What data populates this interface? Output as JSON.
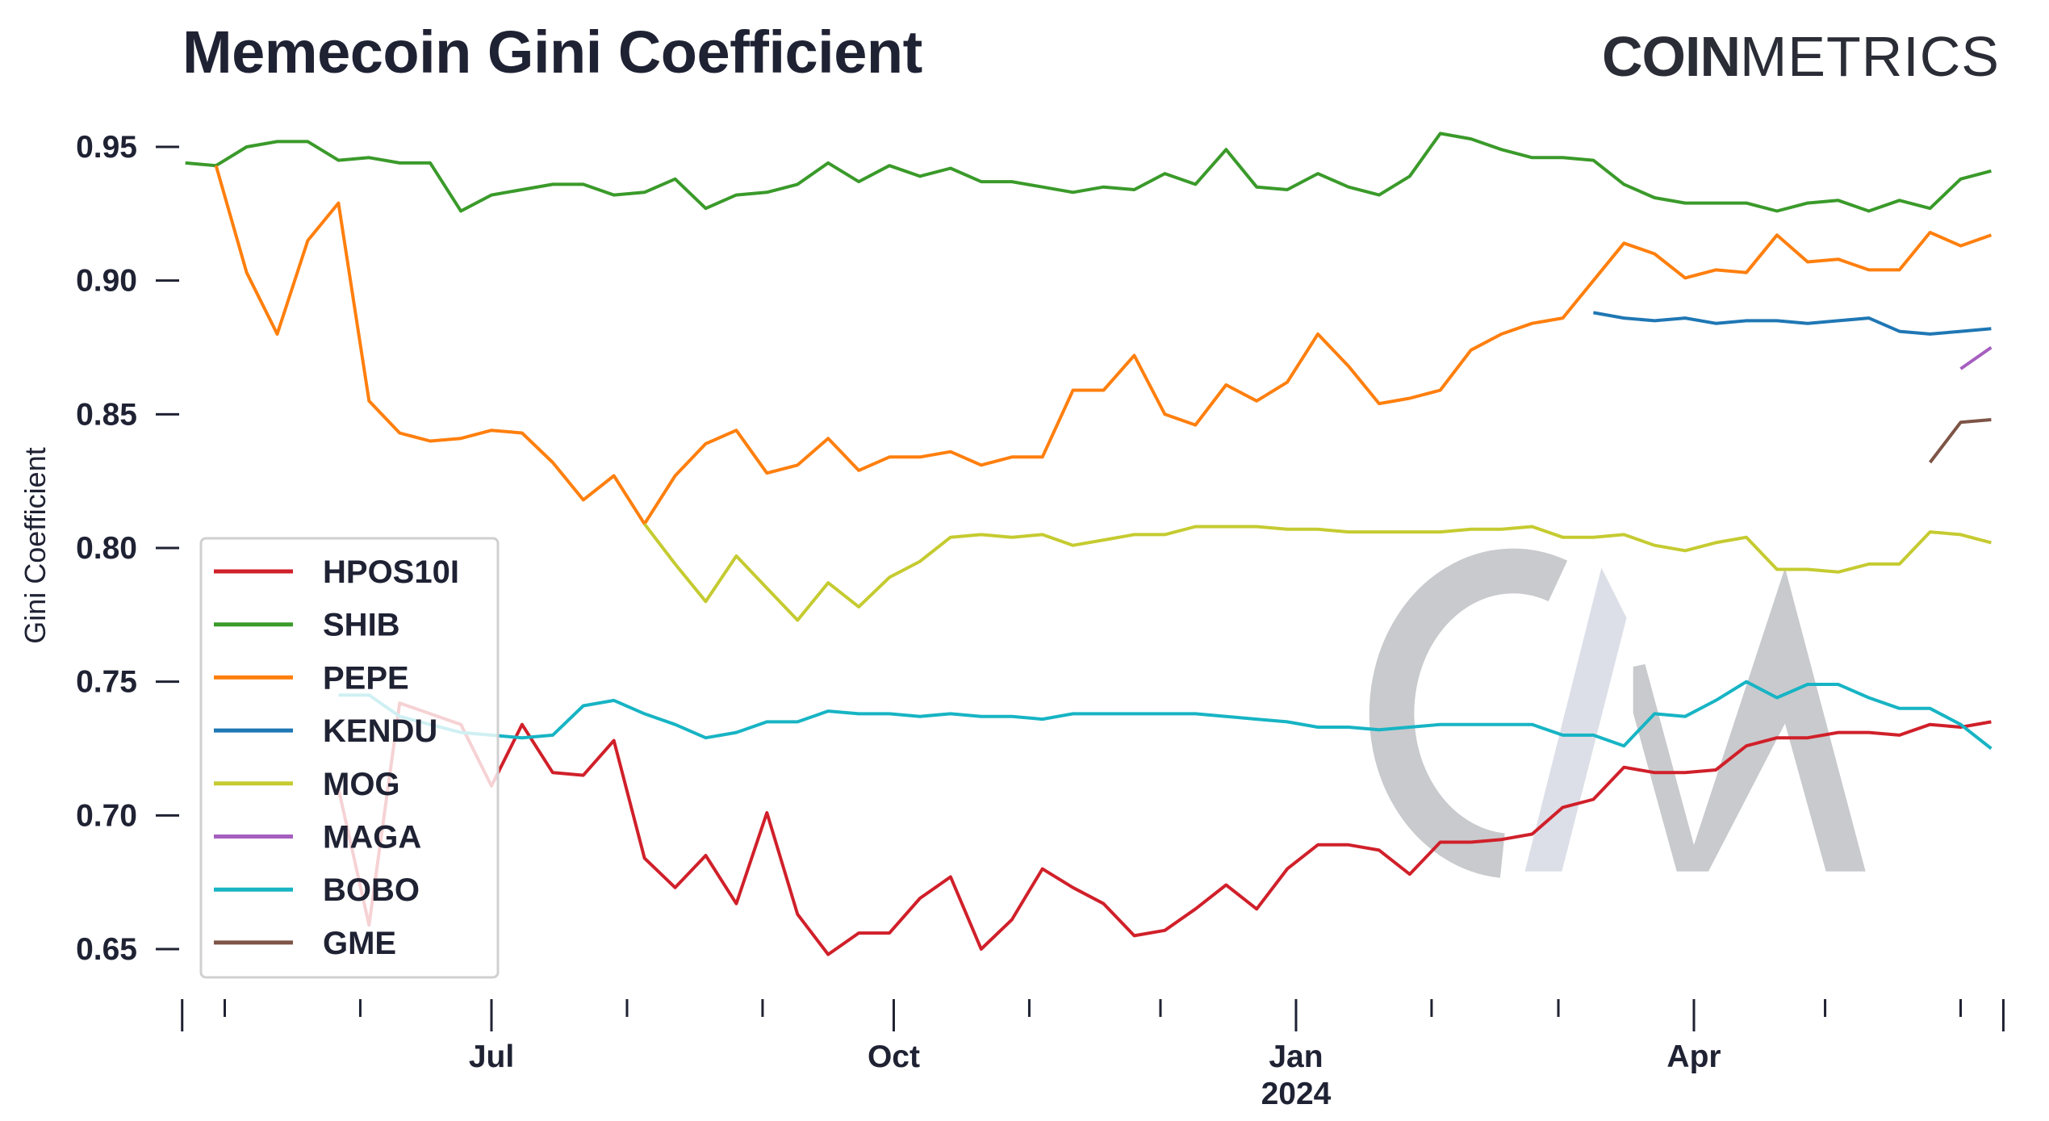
{
  "header": {
    "title": "Memecoin Gini Coefficient",
    "logo_bold": "COIN",
    "logo_light": "METRICS"
  },
  "chart_data": {
    "type": "line",
    "title": "Memecoin Gini Coefficient",
    "xlabel": "",
    "ylabel": "Gini Coefficient",
    "ylim": [
      0.635,
      0.955
    ],
    "yticks": [
      "0.95",
      "0.90",
      "0.85",
      "0.80",
      "0.75",
      "0.70",
      "0.65"
    ],
    "xticks": [
      {
        "date": "2023-07-01",
        "label": "Jul",
        "sublabel": ""
      },
      {
        "date": "2023-10-01",
        "label": "Oct",
        "sublabel": ""
      },
      {
        "date": "2024-01-01",
        "label": "Jan",
        "sublabel": "2024"
      },
      {
        "date": "2024-04-01",
        "label": "Apr",
        "sublabel": ""
      }
    ],
    "grid": false,
    "legend_position": "lower-left",
    "x": [
      "2023-04-22",
      "2023-04-29",
      "2023-05-06",
      "2023-05-13",
      "2023-05-20",
      "2023-05-27",
      "2023-06-03",
      "2023-06-10",
      "2023-06-17",
      "2023-06-24",
      "2023-07-01",
      "2023-07-08",
      "2023-07-15",
      "2023-07-22",
      "2023-07-29",
      "2023-08-05",
      "2023-08-12",
      "2023-08-19",
      "2023-08-26",
      "2023-09-02",
      "2023-09-09",
      "2023-09-16",
      "2023-09-23",
      "2023-09-30",
      "2023-10-07",
      "2023-10-14",
      "2023-10-21",
      "2023-10-28",
      "2023-11-04",
      "2023-11-11",
      "2023-11-18",
      "2023-11-25",
      "2023-12-02",
      "2023-12-09",
      "2023-12-16",
      "2023-12-23",
      "2023-12-30",
      "2024-01-06",
      "2024-01-13",
      "2024-01-20",
      "2024-01-27",
      "2024-02-03",
      "2024-02-10",
      "2024-02-17",
      "2024-02-24",
      "2024-03-02",
      "2024-03-09",
      "2024-03-16",
      "2024-03-23",
      "2024-03-30",
      "2024-04-06",
      "2024-04-13",
      "2024-04-20",
      "2024-04-27",
      "2024-05-04",
      "2024-05-11",
      "2024-05-18",
      "2024-05-25",
      "2024-06-01",
      "2024-06-08"
    ],
    "series": [
      {
        "name": "HPOS10I",
        "color": "#d0202a",
        "values": [
          null,
          null,
          null,
          null,
          null,
          0.71,
          0.659,
          0.742,
          0.738,
          0.734,
          0.711,
          0.734,
          0.716,
          0.715,
          0.728,
          0.684,
          0.673,
          0.685,
          0.667,
          0.701,
          0.663,
          0.648,
          0.656,
          0.656,
          0.669,
          0.677,
          0.65,
          0.661,
          0.68,
          0.673,
          0.667,
          0.655,
          0.657,
          0.665,
          0.674,
          0.665,
          0.68,
          0.689,
          0.689,
          0.687,
          0.678,
          0.69,
          0.69,
          0.691,
          0.693,
          0.703,
          0.706,
          0.718,
          0.716,
          0.716,
          0.717,
          0.726,
          0.729,
          0.729,
          0.731,
          0.731,
          0.73,
          0.734,
          0.733,
          0.735
        ]
      },
      {
        "name": "SHIB",
        "color": "#3a9a2a",
        "values": [
          0.944,
          0.943,
          0.95,
          0.952,
          0.952,
          0.945,
          0.946,
          0.944,
          0.944,
          0.926,
          0.932,
          0.934,
          0.936,
          0.936,
          0.932,
          0.933,
          0.938,
          0.927,
          0.932,
          0.933,
          0.936,
          0.944,
          0.937,
          0.943,
          0.939,
          0.942,
          0.937,
          0.937,
          0.935,
          0.933,
          0.935,
          0.934,
          0.94,
          0.936,
          0.949,
          0.935,
          0.934,
          0.94,
          0.935,
          0.932,
          0.939,
          0.955,
          0.953,
          0.949,
          0.946,
          0.946,
          0.945,
          0.936,
          0.931,
          0.929,
          0.929,
          0.929,
          0.926,
          0.929,
          0.93,
          0.926,
          0.93,
          0.927,
          0.938,
          0.941
        ]
      },
      {
        "name": "PEPE",
        "color": "#ff7f0e",
        "values": [
          null,
          0.943,
          0.903,
          0.88,
          0.915,
          0.929,
          0.855,
          0.843,
          0.84,
          0.841,
          0.844,
          0.843,
          0.832,
          0.818,
          0.827,
          0.809,
          0.827,
          0.839,
          0.844,
          0.828,
          0.831,
          0.841,
          0.829,
          0.834,
          0.834,
          0.836,
          0.831,
          0.834,
          0.834,
          0.859,
          0.859,
          0.872,
          0.85,
          0.846,
          0.861,
          0.855,
          0.862,
          0.88,
          0.868,
          0.854,
          0.856,
          0.859,
          0.874,
          0.88,
          0.884,
          0.886,
          0.9,
          0.914,
          0.91,
          0.901,
          0.904,
          0.903,
          0.917,
          0.907,
          0.908,
          0.904,
          0.904,
          0.918,
          0.913,
          0.917
        ]
      },
      {
        "name": "KENDU",
        "color": "#1f77b4",
        "values": [
          null,
          null,
          null,
          null,
          null,
          null,
          null,
          null,
          null,
          null,
          null,
          null,
          null,
          null,
          null,
          null,
          null,
          null,
          null,
          null,
          null,
          null,
          null,
          null,
          null,
          null,
          null,
          null,
          null,
          null,
          null,
          null,
          null,
          null,
          null,
          null,
          null,
          null,
          null,
          null,
          null,
          null,
          null,
          null,
          null,
          null,
          0.888,
          0.886,
          0.885,
          0.886,
          0.884,
          0.885,
          0.885,
          0.884,
          0.885,
          0.886,
          0.881,
          0.88,
          0.881,
          0.882
        ]
      },
      {
        "name": "MOG",
        "color": "#c5cb30",
        "values": [
          null,
          null,
          null,
          null,
          null,
          null,
          null,
          null,
          null,
          null,
          null,
          null,
          null,
          null,
          null,
          0.809,
          0.794,
          0.78,
          0.797,
          0.785,
          0.773,
          0.787,
          0.778,
          0.789,
          0.795,
          0.804,
          0.805,
          0.804,
          0.805,
          0.801,
          0.803,
          0.805,
          0.805,
          0.808,
          0.808,
          0.808,
          0.807,
          0.807,
          0.806,
          0.806,
          0.806,
          0.806,
          0.807,
          0.807,
          0.808,
          0.804,
          0.804,
          0.805,
          0.801,
          0.799,
          0.802,
          0.804,
          0.792,
          0.792,
          0.791,
          0.794,
          0.794,
          0.806,
          0.805,
          0.802
        ]
      },
      {
        "name": "MAGA",
        "color": "#a65fbf",
        "values": [
          null,
          null,
          null,
          null,
          null,
          null,
          null,
          null,
          null,
          null,
          null,
          null,
          null,
          null,
          null,
          null,
          null,
          null,
          null,
          null,
          null,
          null,
          null,
          null,
          null,
          null,
          null,
          null,
          null,
          null,
          null,
          null,
          null,
          null,
          null,
          null,
          null,
          null,
          null,
          null,
          null,
          null,
          null,
          null,
          null,
          null,
          null,
          null,
          null,
          null,
          null,
          null,
          null,
          null,
          null,
          null,
          null,
          null,
          0.867,
          0.875
        ]
      },
      {
        "name": "BOBO",
        "color": "#17b4c4",
        "values": [
          null,
          null,
          null,
          null,
          null,
          0.745,
          0.745,
          0.737,
          0.734,
          0.731,
          0.73,
          0.729,
          0.73,
          0.741,
          0.743,
          0.738,
          0.734,
          0.729,
          0.731,
          0.735,
          0.735,
          0.739,
          0.738,
          0.738,
          0.737,
          0.738,
          0.737,
          0.737,
          0.736,
          0.738,
          0.738,
          0.738,
          0.738,
          0.738,
          0.737,
          0.736,
          0.735,
          0.733,
          0.733,
          0.732,
          0.733,
          0.734,
          0.734,
          0.734,
          0.734,
          0.73,
          0.73,
          0.726,
          0.738,
          0.737,
          0.743,
          0.75,
          0.744,
          0.749,
          0.749,
          0.744,
          0.74,
          0.74,
          0.734,
          0.725
        ]
      },
      {
        "name": "GME",
        "color": "#7d5446",
        "values": [
          null,
          null,
          null,
          null,
          null,
          null,
          null,
          null,
          null,
          null,
          null,
          null,
          null,
          null,
          null,
          null,
          null,
          null,
          null,
          null,
          null,
          null,
          null,
          null,
          null,
          null,
          null,
          null,
          null,
          null,
          null,
          null,
          null,
          null,
          null,
          null,
          null,
          null,
          null,
          null,
          null,
          null,
          null,
          null,
          null,
          null,
          null,
          null,
          null,
          null,
          null,
          null,
          null,
          null,
          null,
          null,
          null,
          0.832,
          0.847,
          0.848
        ]
      }
    ]
  }
}
